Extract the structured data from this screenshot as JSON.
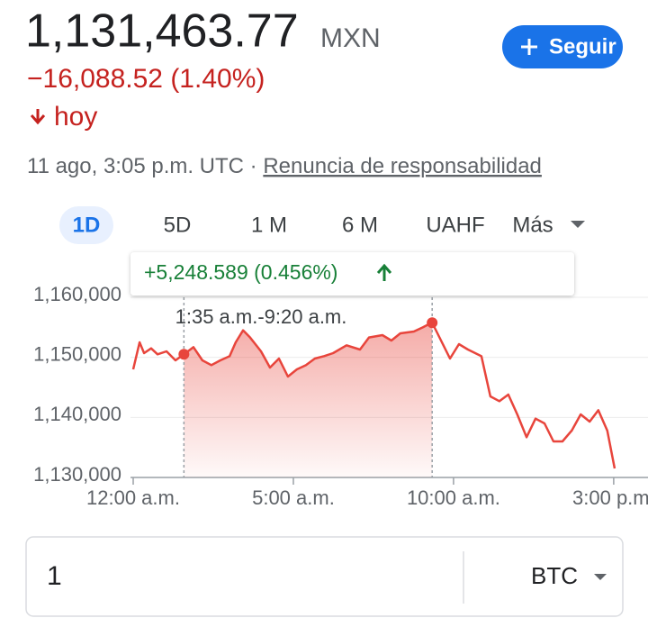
{
  "header": {
    "price": "1,131,463.77",
    "currency": "MXN",
    "change": "−16,088.52 (1.40%)",
    "period": "hoy",
    "timestamp": "11 ago, 3:05 p.m. UTC ·",
    "disclaimer": "Renuncia de responsabilidad",
    "follow": "Seguir"
  },
  "tabs": [
    "1D",
    "5D",
    "1 M",
    "6 M",
    "UAHF",
    "Más"
  ],
  "chart_data": {
    "type": "line",
    "color": "#e8453c",
    "x": [
      0,
      0.2,
      0.34,
      0.56,
      0.76,
      1.04,
      1.32,
      1.58,
      1.88,
      2.16,
      2.44,
      2.72,
      3.01,
      3.2,
      3.43,
      3.65,
      3.99,
      4.27,
      4.55,
      4.83,
      5.11,
      5.39,
      5.67,
      5.96,
      6.24,
      6.66,
      7.08,
      7.36,
      7.78,
      8.06,
      8.34,
      8.76,
      9.04,
      9.33,
      9.61,
      9.89,
      10.17,
      10.45,
      10.87,
      11.15,
      11.43,
      11.71,
      11.99,
      12.28,
      12.56,
      12.84,
      13.12,
      13.4,
      13.69,
      13.97,
      14.25,
      14.52,
      14.8,
      15.03
    ],
    "values": [
      1148000,
      1152500,
      1150700,
      1151500,
      1150500,
      1151000,
      1149500,
      1150500,
      1151700,
      1149500,
      1148700,
      1149500,
      1150200,
      1152500,
      1154500,
      1153300,
      1151000,
      1148300,
      1149800,
      1146800,
      1148000,
      1148700,
      1149800,
      1150200,
      1150700,
      1152000,
      1151300,
      1153300,
      1153700,
      1152800,
      1154000,
      1154300,
      1155000,
      1155800,
      1152800,
      1149800,
      1152200,
      1151300,
      1150200,
      1143500,
      1142700,
      1143800,
      1140500,
      1136700,
      1139800,
      1139000,
      1136000,
      1136000,
      1137800,
      1140500,
      1139300,
      1141200,
      1137800,
      1131500
    ],
    "xlim": [
      0,
      15.2
    ],
    "xticks": [
      {
        "value": 0,
        "label": "12:00 a.m."
      },
      {
        "value": 5,
        "label": "5:00 a.m."
      },
      {
        "value": 10,
        "label": "10:00 a.m."
      },
      {
        "value": 15,
        "label": "3:00 p.m."
      }
    ],
    "ylim": [
      1130000,
      1160000
    ],
    "yticks": [
      {
        "value": 1130000,
        "label": "1,130,000"
      },
      {
        "value": 1140000,
        "label": "1,140,000"
      },
      {
        "value": 1150000,
        "label": "1,150,000"
      },
      {
        "value": 1160000,
        "label": "1,160,000"
      }
    ],
    "grid": true,
    "selection": {
      "label": "1:35 a.m.-9:20 a.m.",
      "change": "+5,248.589 (0.456%)",
      "x": [
        1.583,
        9.333
      ]
    }
  },
  "converter": {
    "amount": "1",
    "unit": "BTC"
  }
}
